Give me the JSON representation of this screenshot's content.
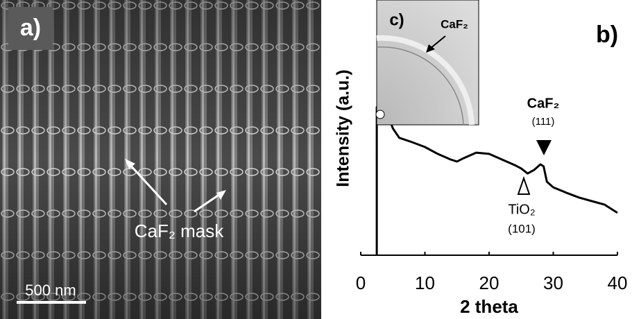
{
  "panel_a": {
    "label": "a)",
    "annotation": "CaF₂ mask",
    "scale_bar": "500 nm"
  },
  "inset": {
    "label": "c)",
    "annotation": "CaF₂"
  },
  "chart_data": {
    "type": "line",
    "panel_label": "b)",
    "x_label": "2 theta",
    "y_label": "Intensity (a.u.)",
    "x": [
      2.5,
      2.5,
      4,
      5,
      6,
      8,
      10,
      12,
      14,
      15,
      16,
      18,
      20,
      22,
      24,
      25,
      26,
      27,
      28,
      28.5,
      29,
      30,
      32,
      34,
      36,
      38,
      40
    ],
    "values": [
      0,
      58,
      56.5,
      49.7,
      46,
      44.3,
      42.4,
      39.7,
      37.5,
      36.7,
      38,
      40.2,
      39.7,
      37.5,
      35.3,
      34,
      32,
      33.4,
      35.6,
      34.8,
      28.8,
      26.6,
      24.5,
      22.6,
      21.2,
      19.8,
      16.6
    ],
    "color": "#000000",
    "xlim": [
      0,
      40
    ],
    "xticks": [
      0,
      10,
      20,
      30,
      40
    ],
    "ylim": [
      0,
      100
    ],
    "annotations": [
      {
        "text": "CaF₂",
        "sub": "(111)"
      },
      {
        "text": "TiO₂",
        "sub": "(101)"
      }
    ]
  }
}
